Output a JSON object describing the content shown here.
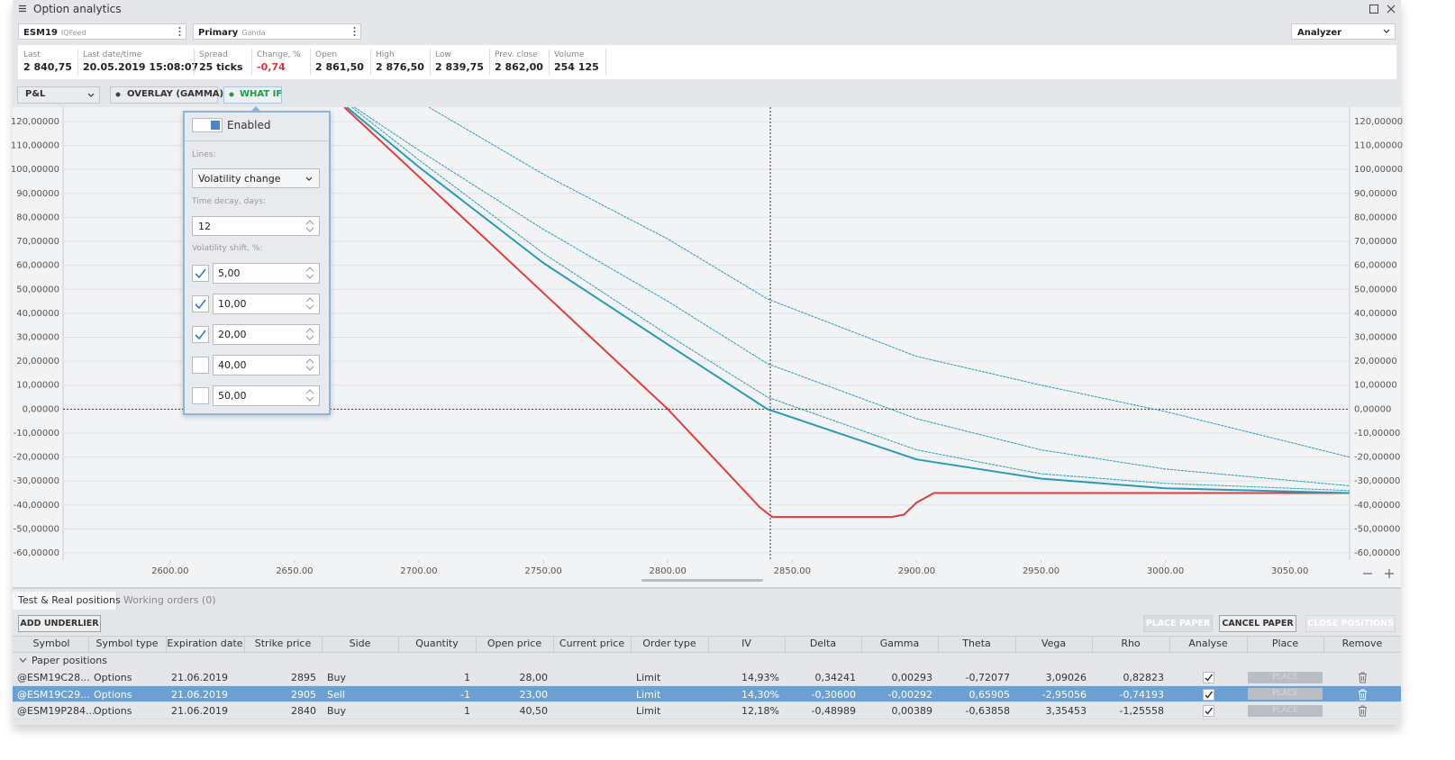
{
  "window": {
    "title": "Option analytics"
  },
  "toolbar": {
    "symbol": "ESM19",
    "feed": "IQFeed",
    "account": "Primary",
    "broker": "Ganda",
    "mode": "Analyzer"
  },
  "stats": [
    {
      "label": "Last",
      "value": "2 840,75"
    },
    {
      "label": "Last date/time",
      "value": "20.05.2019 15:08:07"
    },
    {
      "label": "Spread",
      "value": "25 ticks"
    },
    {
      "label": "Change, %",
      "value": "-0,74",
      "negative": true
    },
    {
      "label": "Open",
      "value": "2 861,50"
    },
    {
      "label": "High",
      "value": "2 876,50"
    },
    {
      "label": "Low",
      "value": "2 839,75"
    },
    {
      "label": "Prev. close",
      "value": "2 862,00"
    },
    {
      "label": "Volume",
      "value": "254 125"
    }
  ],
  "chart_controls": {
    "view": "P&L",
    "overlay": "OVERLAY (GAMMA)",
    "what_if": "WHAT IF"
  },
  "what_if": {
    "enabled": "Enabled",
    "lines_label": "Lines:",
    "lines_value": "Volatility change",
    "time_decay_label": "Time decay, days:",
    "time_decay": "12",
    "vol_label": "Volatility shift, %:",
    "shifts": [
      {
        "value": "5,00",
        "checked": true
      },
      {
        "value": "10,00",
        "checked": true
      },
      {
        "value": "20,00",
        "checked": true
      },
      {
        "value": "40,00",
        "checked": false
      },
      {
        "value": "50,00",
        "checked": false
      }
    ]
  },
  "chart_data": {
    "type": "line",
    "xlim": [
      2557,
      3074
    ],
    "ylim": [
      -63,
      126
    ],
    "xticks": [
      {
        "value": 2600,
        "label": "2600.00"
      },
      {
        "value": 2650,
        "label": "2650.00"
      },
      {
        "value": 2700,
        "label": "2700.00"
      },
      {
        "value": 2750,
        "label": "2750.00"
      },
      {
        "value": 2800,
        "label": "2800.00"
      },
      {
        "value": 2850,
        "label": "2850.00"
      },
      {
        "value": 2900,
        "label": "2900.00"
      },
      {
        "value": 2950,
        "label": "2950.00"
      },
      {
        "value": 3000,
        "label": "3000.00"
      },
      {
        "value": 3050,
        "label": "3050.00"
      }
    ],
    "yticks": [
      {
        "value": 120,
        "label": "120,00000"
      },
      {
        "value": 110,
        "label": "110,00000"
      },
      {
        "value": 100,
        "label": "100,00000"
      },
      {
        "value": 90,
        "label": "90,00000"
      },
      {
        "value": 80,
        "label": "80,00000"
      },
      {
        "value": 70,
        "label": "70,00000"
      },
      {
        "value": 60,
        "label": "60,00000"
      },
      {
        "value": 50,
        "label": "50,00000"
      },
      {
        "value": 40,
        "label": "40,00000"
      },
      {
        "value": 30,
        "label": "30,00000"
      },
      {
        "value": 20,
        "label": "20,00000"
      },
      {
        "value": 10,
        "label": "10,00000"
      },
      {
        "value": 0,
        "label": "0,00000"
      },
      {
        "value": -10,
        "label": "-10,00000"
      },
      {
        "value": -20,
        "label": "-20,00000"
      },
      {
        "value": -30,
        "label": "-30,00000"
      },
      {
        "value": -40,
        "label": "-40,00000"
      },
      {
        "value": -50,
        "label": "-50,00000"
      },
      {
        "value": -60,
        "label": "-60,00000"
      }
    ],
    "grid": true,
    "series": [
      {
        "color": "#e23b3b",
        "style": "solid",
        "x": [
          2670,
          2700,
          2750,
          2800,
          2837,
          2842,
          2890,
          2895,
          2900,
          2907,
          3074
        ],
        "values": [
          126,
          97,
          48.5,
          0,
          -41,
          -45,
          -45,
          -44,
          -39,
          -35,
          -35
        ]
      },
      {
        "color": "#2a9bb5",
        "style": "solid",
        "x": [
          2671,
          2700,
          2750,
          2800,
          2840,
          2900,
          2950,
          3000,
          3074
        ],
        "values": [
          126,
          101,
          61,
          27,
          0,
          -21,
          -29,
          -33,
          -35
        ]
      },
      {
        "color": "#2a9bb5",
        "style": "dashed",
        "x": [
          2673,
          2700,
          2750,
          2800,
          2840,
          2900,
          2950,
          3000,
          3074
        ],
        "values": [
          126,
          104,
          65,
          31,
          5,
          -17,
          -27,
          -31,
          -34
        ]
      },
      {
        "color": "#2a9bb5",
        "style": "dashed",
        "x": [
          2674,
          2700,
          2750,
          2800,
          2840,
          2900,
          2950,
          3000,
          3074
        ],
        "values": [
          126,
          108,
          75,
          45,
          19,
          -4,
          -17,
          -25,
          -32
        ]
      },
      {
        "color": "#2a9bb5",
        "style": "dashed",
        "x": [
          2704,
          2750,
          2800,
          2840,
          2900,
          2950,
          3000,
          3074
        ],
        "values": [
          126,
          98,
          71,
          46,
          22,
          10,
          -1,
          -20
        ]
      }
    ]
  },
  "tabs": [
    "Test & Real positions",
    "Working orders (0)"
  ],
  "buttons": {
    "add": "ADD UNDERLIER",
    "place": "PLACE PAPER",
    "cancel": "CANCEL PAPER",
    "close": "CLOSE POSITIONS"
  },
  "table": {
    "columns": [
      "Symbol",
      "Symbol type",
      "Expiration date",
      "Strike price",
      "Side",
      "Quantity",
      "Open price",
      "Current price",
      "Order type",
      "IV",
      "Delta",
      "Gamma",
      "Theta",
      "Vega",
      "Rho",
      "Analyse",
      "Place",
      "Remove"
    ],
    "group": "Paper positions",
    "place_label": "PLACE",
    "selected_row": 1,
    "rows": [
      {
        "symbol": "@ESM19C28...",
        "symbol_type": "Options",
        "expiration": "21.06.2019",
        "strike": "2895",
        "side": "Buy",
        "quantity": "1",
        "open_price": "28,00",
        "order_type": "Limit",
        "iv": "14,93%",
        "delta": "0,34241",
        "gamma": "0,00293",
        "theta": "-0,72077",
        "vega": "3,09026",
        "rho": "0,82823",
        "analyse": true
      },
      {
        "symbol": "@ESM19C29...",
        "symbol_type": "Options",
        "expiration": "21.06.2019",
        "strike": "2905",
        "side": "Sell",
        "quantity": "-1",
        "open_price": "23,00",
        "order_type": "Limit",
        "iv": "14,30%",
        "delta": "-0,30600",
        "gamma": "-0,00292",
        "theta": "0,65905",
        "vega": "-2,95056",
        "rho": "-0,74193",
        "analyse": true
      },
      {
        "symbol": "@ESM19P284...",
        "symbol_type": "Options",
        "expiration": "21.06.2019",
        "strike": "2840",
        "side": "Buy",
        "quantity": "1",
        "open_price": "40,50",
        "order_type": "Limit",
        "iv": "12,18%",
        "delta": "-0,48989",
        "gamma": "0,00389",
        "theta": "-0,63858",
        "vega": "3,35453",
        "rho": "-1,25558",
        "analyse": true
      }
    ]
  }
}
